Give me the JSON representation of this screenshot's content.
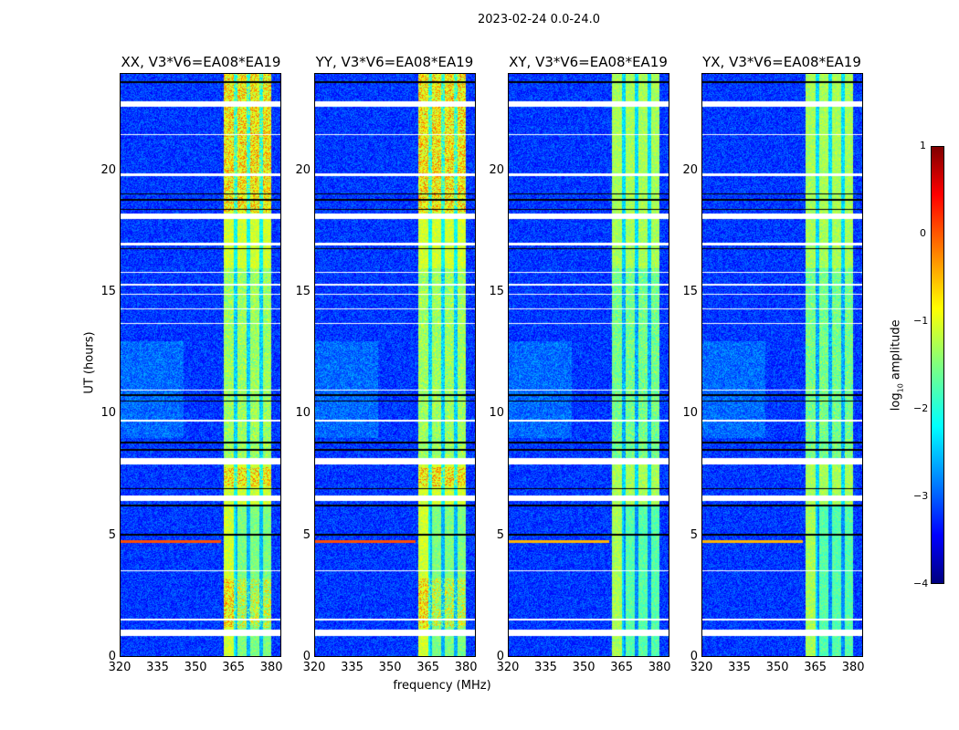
{
  "figure_title": "2023-02-24 0.0-24.0",
  "chart_data": {
    "type": "heatmap",
    "title": "2023-02-24 0.0-24.0",
    "xlabel": "frequency (MHz)",
    "ylabel": "UT (hours)",
    "xlim": [
      320,
      384
    ],
    "ylim": [
      0,
      24
    ],
    "xticks": [
      "320",
      "335",
      "350",
      "365",
      "380"
    ],
    "yticks": [
      "0",
      "5",
      "10",
      "15",
      "20"
    ],
    "panels": [
      {
        "title": "XX, V3*V6=EA08*EA19",
        "band_level": -1.1,
        "hot": true
      },
      {
        "title": "YY, V3*V6=EA08*EA19",
        "band_level": -1.1,
        "hot": true
      },
      {
        "title": "XY, V3*V6=EA08*EA19",
        "band_level": -1.3,
        "hot": false
      },
      {
        "title": "YX, V3*V6=EA08*EA19",
        "band_level": -1.3,
        "hot": false
      }
    ],
    "background_level": -3.1,
    "bright_band_mhz": [
      361,
      380
    ],
    "band_dips_mhz": [
      366,
      371,
      376
    ],
    "flagged_hours": [
      [
        22.65,
        22.9
      ],
      [
        19.8,
        19.92
      ],
      [
        18.05,
        18.25
      ],
      [
        16.95,
        17.05
      ],
      [
        7.9,
        8.2
      ],
      [
        6.4,
        6.65
      ],
      [
        0.85,
        1.1
      ],
      [
        15.3,
        15.35
      ],
      [
        15.8,
        15.85
      ],
      [
        14.9,
        14.95
      ],
      [
        14.3,
        14.35
      ],
      [
        13.7,
        13.75
      ],
      [
        3.5,
        3.55
      ],
      [
        1.5,
        1.55
      ],
      [
        21.5,
        21.55
      ],
      [
        10.95,
        11.0
      ],
      [
        9.7,
        9.75
      ]
    ],
    "dark_hours": [
      [
        23.65,
        23.7
      ],
      [
        18.4,
        18.45
      ],
      [
        18.8,
        18.85
      ],
      [
        19.05,
        19.1
      ],
      [
        16.8,
        16.85
      ],
      [
        10.5,
        10.55
      ],
      [
        10.75,
        10.8
      ],
      [
        8.5,
        8.55
      ],
      [
        8.8,
        8.85
      ],
      [
        6.9,
        6.95
      ],
      [
        5.0,
        5.05
      ],
      [
        6.2,
        6.25
      ]
    ],
    "rfi_line_hour": 4.75,
    "colorbar": {
      "label": "log10 amplitude",
      "label_base": "log",
      "label_sub": "10",
      "label_rest": " amplitude",
      "range": [
        -4,
        1
      ],
      "ticks": [
        "1",
        "0",
        "−1",
        "−2",
        "−3",
        "−4"
      ],
      "colormap": "jet"
    }
  }
}
